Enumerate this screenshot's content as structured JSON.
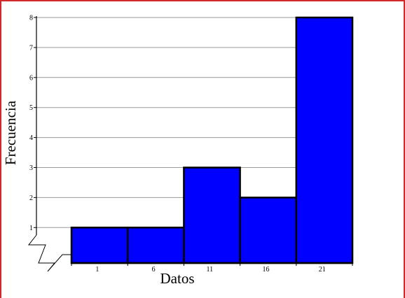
{
  "chart_data": {
    "type": "bar",
    "style": "histogram",
    "categories": [
      "1",
      "6",
      "11",
      "16",
      "21"
    ],
    "values": [
      1,
      1,
      3,
      2,
      8
    ],
    "xlabel": "Datos",
    "ylabel": "Frecuencia",
    "ylim": [
      0,
      8
    ],
    "yticks": [
      "1",
      "2",
      "3",
      "4",
      "5",
      "6",
      "7",
      "8"
    ],
    "grid": true,
    "axis_break": true,
    "bar_color": "#0000ff",
    "bar_edge_color": "#000000",
    "frame_color": "#d22a2a"
  }
}
